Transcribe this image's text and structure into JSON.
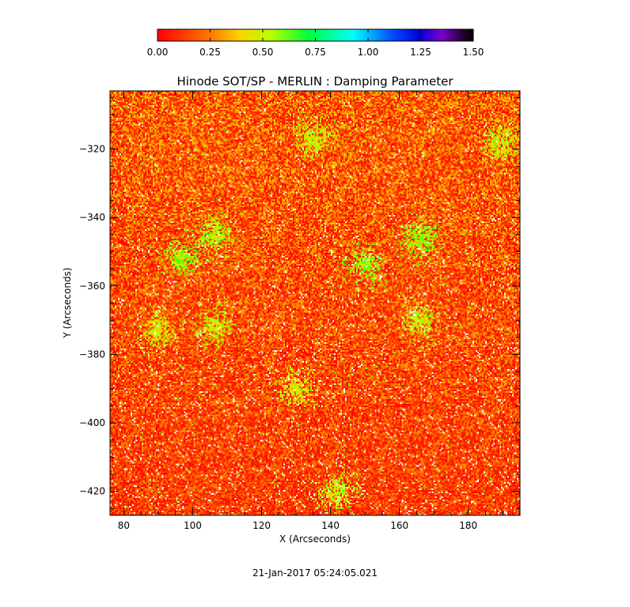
{
  "chart_data": {
    "type": "heatmap",
    "title": "Hinode SOT/SP - MERLIN : Damping Parameter",
    "xlabel": "X (Arcseconds)",
    "ylabel": "Y (Arcseconds)",
    "timestamp": "21-Jan-2017 05:24:05.021",
    "xlim": [
      76,
      195
    ],
    "ylim": [
      -427,
      -303
    ],
    "x_ticks": [
      80,
      100,
      120,
      140,
      160,
      180
    ],
    "y_ticks": [
      -320,
      -340,
      -360,
      -380,
      -400,
      -420
    ],
    "colorbar": {
      "range": [
        0.0,
        1.5
      ],
      "ticks": [
        "0.00",
        "0.25",
        "0.50",
        "0.75",
        "1.00",
        "1.25",
        "1.50"
      ],
      "colormap": "rainbow (red-yellow-green-cyan-blue-purple-black)"
    },
    "typical_value_range": [
      0.0,
      0.3
    ],
    "enhanced_regions": [
      {
        "x": 106,
        "y": -345,
        "approx_value": 0.55
      },
      {
        "x": 97,
        "y": -352,
        "approx_value": 0.6
      },
      {
        "x": 107,
        "y": -372,
        "approx_value": 0.5
      },
      {
        "x": 135,
        "y": -317,
        "approx_value": 0.5
      },
      {
        "x": 150,
        "y": -354,
        "approx_value": 0.6
      },
      {
        "x": 166,
        "y": -346,
        "approx_value": 0.6
      },
      {
        "x": 166,
        "y": -370,
        "approx_value": 0.5
      },
      {
        "x": 130,
        "y": -390,
        "approx_value": 0.45
      },
      {
        "x": 142,
        "y": -420,
        "approx_value": 0.5
      },
      {
        "x": 190,
        "y": -318,
        "approx_value": 0.5
      },
      {
        "x": 90,
        "y": -373,
        "approx_value": 0.45
      }
    ]
  },
  "colors": {
    "background": "#ffffff",
    "frame": "#000000"
  }
}
